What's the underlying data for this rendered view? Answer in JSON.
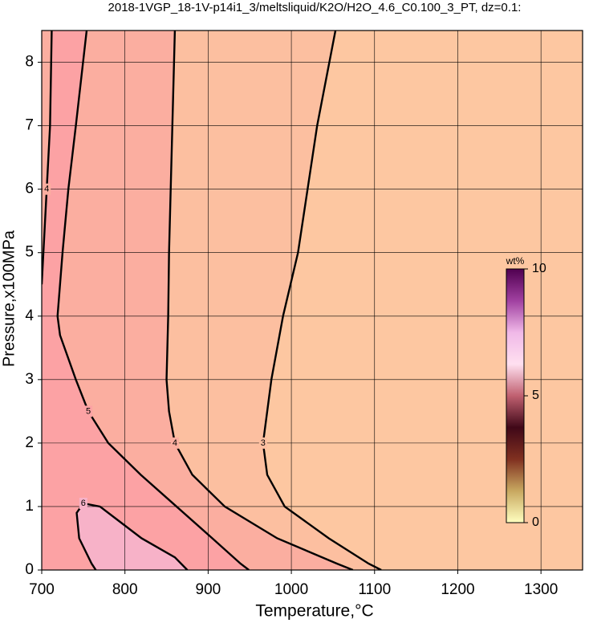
{
  "chart_data": {
    "type": "contour",
    "title": "2018-1VGP_18-1V-p14i1_3/meltsliquid/K2O/H2O_4.6_C0.100_3_PT, dz=0.1:",
    "x_label": "Temperature,°C",
    "y_label": "Pressure,x100MPa",
    "xlim": [
      700,
      1350
    ],
    "xticks": [
      700,
      800,
      900,
      1000,
      1100,
      1200,
      1300
    ],
    "ylim": [
      0,
      8.5
    ],
    "yticks": [
      0,
      1,
      2,
      3,
      4,
      5,
      6,
      7,
      8
    ],
    "grid": true,
    "background": "#fdc7a1",
    "contours": [
      {
        "level": 3,
        "fill": "#fcbfa0",
        "x": [
          1053,
          1031,
          1008,
          990,
          976,
          966,
          971,
          992,
          1045,
          1093,
          1108
        ],
        "y": [
          8.5,
          7,
          5,
          4,
          3,
          2,
          1.5,
          1,
          0.5,
          0.1,
          0
        ]
      },
      {
        "level": 4,
        "fill": "#fbaea0",
        "x": [
          860,
          857,
          853,
          852,
          850,
          853,
          860,
          881,
          920,
          983,
          1055,
          1074
        ],
        "y": [
          8.5,
          7,
          5,
          4,
          3,
          2.5,
          2,
          1.5,
          1,
          0.5,
          0.1,
          0
        ]
      },
      {
        "level": 5,
        "fill": "#fca2a4",
        "x": [
          754,
          741,
          732,
          725,
          719,
          722,
          741,
          756,
          780,
          819,
          862,
          905,
          939,
          949
        ],
        "y": [
          8.5,
          7,
          6,
          5,
          4,
          3.7,
          3,
          2.5,
          2,
          1.5,
          1,
          0.5,
          0.1,
          0
        ]
      },
      {
        "level": 4,
        "fill": "#fbaea0",
        "x": [
          712,
          710,
          706,
          702,
          700
        ],
        "y": [
          8.5,
          7,
          6,
          5,
          4.5
        ]
      },
      {
        "level": 6,
        "fill": "#f7b2c8",
        "x": [
          875,
          860,
          820,
          790,
          770,
          750,
          742,
          745,
          760,
          765
        ],
        "y": [
          0,
          0.2,
          0.5,
          0.8,
          1.0,
          1.05,
          0.9,
          0.5,
          0.1,
          0
        ]
      }
    ],
    "colorbar": {
      "label": "wt%",
      "lim": [
        0,
        10
      ],
      "ticks": [
        0,
        5,
        10
      ],
      "colors": [
        "#ffffc0",
        "#c8a860",
        "#803020",
        "#400818",
        "#c06070",
        "#ffe0f0",
        "#f0b8e8",
        "#a040a0",
        "#500050"
      ]
    }
  }
}
